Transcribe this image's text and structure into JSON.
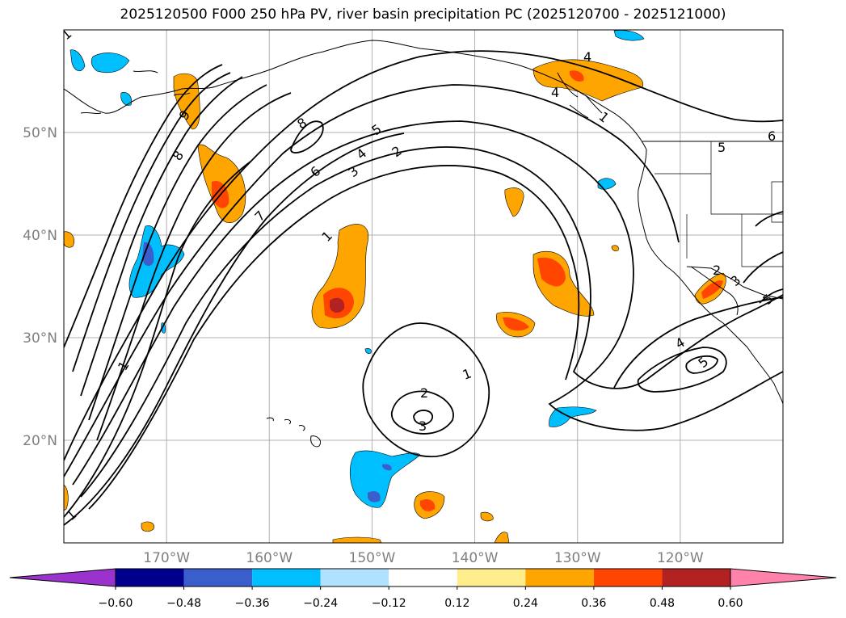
{
  "title": "2025120500 F000 250 hPa PV, river basin precipitation PC (2025120700 - 2025121000)",
  "map": {
    "lon_range": [
      -180,
      -110
    ],
    "lat_range": [
      10,
      60
    ],
    "grid": true,
    "lat_ticks": [
      {
        "lat": 50,
        "label": "50°N"
      },
      {
        "lat": 40,
        "label": "40°N"
      },
      {
        "lat": 30,
        "label": "30°N"
      },
      {
        "lat": 20,
        "label": "20°N"
      }
    ],
    "lon_ticks": [
      {
        "lon": -170,
        "label": "170°W"
      },
      {
        "lon": -160,
        "label": "160°W"
      },
      {
        "lon": -150,
        "label": "150°W"
      },
      {
        "lon": -140,
        "label": "140°W"
      },
      {
        "lon": -130,
        "label": "130°W"
      },
      {
        "lon": -120,
        "label": "120°W"
      }
    ]
  },
  "contour_labels": [
    "1",
    "1",
    "1",
    "1",
    "2",
    "3",
    "1",
    "8",
    "8",
    "9",
    "6",
    "7",
    "4",
    "3",
    "5",
    "2",
    "4",
    "4",
    "6",
    "5",
    "2",
    "3",
    "5",
    "4",
    "5",
    "1"
  ],
  "colorbar": {
    "colors": [
      "#9b32cd",
      "#00008b",
      "#3a5fcd",
      "#00bfff",
      "#b0e2ff",
      "#ffffff",
      "#ffec8b",
      "#ffa500",
      "#ff4500",
      "#b22222",
      "#ff82ab"
    ],
    "tick_labels": [
      "−0.60",
      "−0.48",
      "−0.36",
      "−0.24",
      "−0.12",
      "0.12",
      "0.24",
      "0.36",
      "0.48",
      "0.60"
    ]
  }
}
